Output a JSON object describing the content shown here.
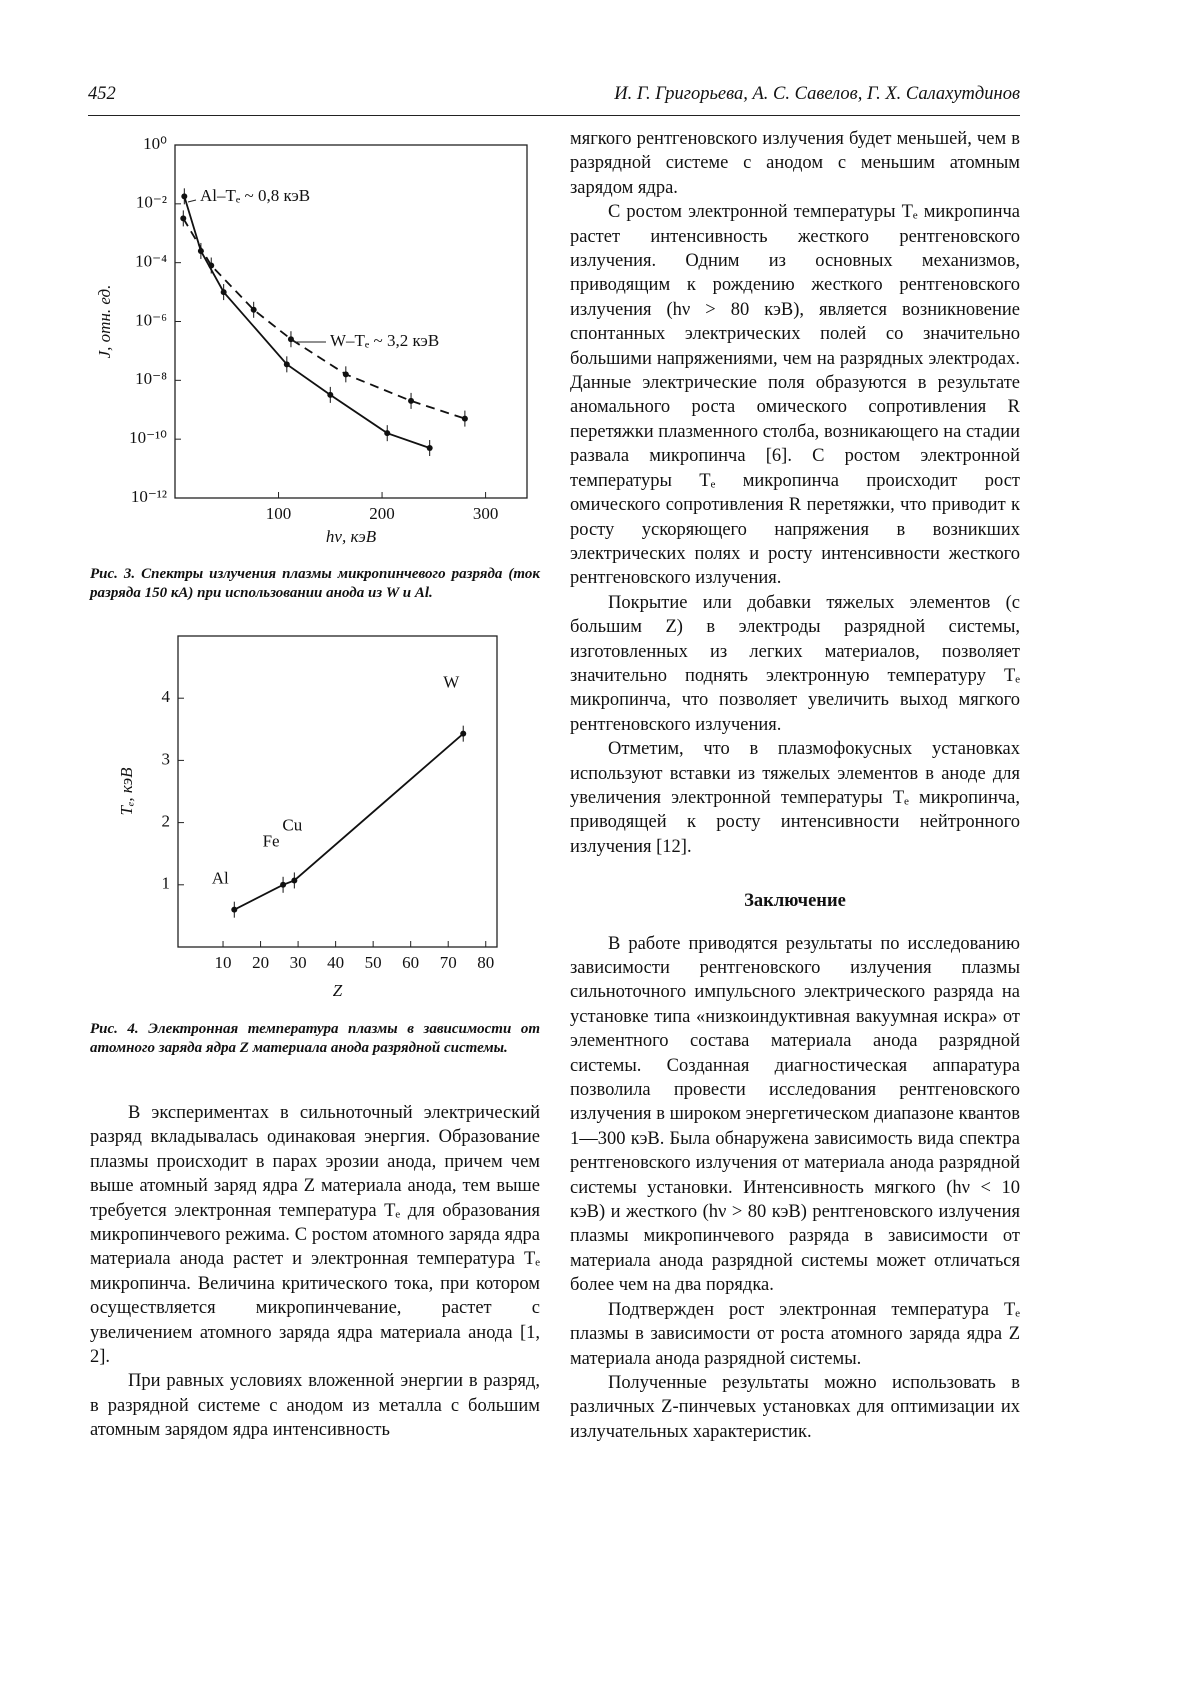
{
  "header": {
    "page_number": "452",
    "authors": "И. Г. Григорьева, А. С. Савелов, Г. Х. Салахутдинов"
  },
  "chart_data": [
    {
      "type": "line",
      "log_scale_y": true,
      "x_label": "hν, кэВ",
      "y_label": "J, отн. ед.",
      "xlim": [
        0,
        340
      ],
      "xticks": [
        100,
        200,
        300
      ],
      "ylim": [
        1e-12,
        1
      ],
      "yticks": [
        {
          "value": 1,
          "label": "10⁰"
        },
        {
          "value": 0.01,
          "label": "10⁻²"
        },
        {
          "value": 0.0001,
          "label": "10⁻⁴"
        },
        {
          "value": 1e-06,
          "label": "10⁻⁶"
        },
        {
          "value": 1e-08,
          "label": "10⁻⁸"
        },
        {
          "value": 1e-10,
          "label": "10⁻¹⁰"
        },
        {
          "value": 1e-12,
          "label": "10⁻¹²"
        }
      ],
      "series": [
        {
          "name": "Al–Tₑ ~ 0,8 кэВ",
          "color": "#111111",
          "dashed": false,
          "x": [
            9,
            25,
            47,
            108,
            150,
            205,
            246
          ],
          "values": [
            0.018,
            0.00025,
            1e-05,
            3.5e-08,
            3.2e-09,
            1.6e-10,
            5e-11
          ]
        },
        {
          "name": "W–Tₑ ~ 3,2 кэВ",
          "color": "#111111",
          "dashed": true,
          "x": [
            8,
            35,
            76,
            112,
            165,
            228,
            280
          ],
          "values": [
            0.0032,
            8e-05,
            2.5e-06,
            2.5e-07,
            1.6e-08,
            2e-09,
            5e-10
          ]
        }
      ],
      "caption": "Рис. 3. Спектры излучения плазмы микропинчевого разряда (ток разряда 150 кА) при использовании анода из W и Al."
    },
    {
      "type": "line",
      "log_scale_y": false,
      "x_label": "Z",
      "y_label": "Tₑ, кэВ",
      "xlim": [
        -2,
        83
      ],
      "xticks": [
        10,
        20,
        30,
        40,
        50,
        60,
        70,
        80
      ],
      "ylim": [
        0,
        5
      ],
      "yticks": [
        1,
        2,
        3,
        4
      ],
      "series": [
        {
          "color": "#111111",
          "dashed": false,
          "x": [
            13,
            26,
            29,
            74
          ],
          "values": [
            0.6,
            1.0,
            1.07,
            3.43
          ],
          "point_labels": [
            "Al",
            "Fe",
            "Cu",
            "W"
          ]
        }
      ],
      "caption": "Рис. 4. Электронная температура плазмы в зависимости от атомного заряда ядра Z материала анода разрядной системы."
    }
  ],
  "left_column": [
    "В экспериментах в сильноточный электрический разряд вкладывалась одинаковая энергия. Образование плазмы происходит в парах эрозии анода, причем чем выше атомный заряд ядра Z материала анода, тем выше требуется электронная температура Tₑ для образования микропинчевого режима. С ростом атомного заряда ядра материала анода растет и электронная температура Tₑ микропинча. Величина критического тока, при котором осуществляется микропинчевание, растет с увеличением атомного заряда ядра материала анода [1, 2].",
    "При равных условиях вложенной энергии в разряд, в разрядной системе с анодом из металла с большим атомным зарядом ядра интенсивность"
  ],
  "right_column": [
    "мягкого рентгеновского излучения будет меньшей, чем в разрядной системе с анодом с меньшим атомным зарядом ядра.",
    "С ростом электронной температуры Tₑ микропинча растет интенсивность жесткого рентгеновского излучения. Одним из основных механизмов, приводящим к рождению жесткого рентгеновского излучения (hν > 80 кэВ), является возникновение спонтанных электрических полей со значительно большими напряжениями, чем на разрядных электродах. Данные электрические поля образуются в результате аномального роста омического сопротивления R перетяжки плазменного столба, возникающего на стадии развала микропинча [6]. С ростом электронной температуры Tₑ микропинча происходит рост омического сопротивления R перетяжки, что приводит к росту ускоряющего напряжения в возникших электрических полях и росту интенсивности жесткого рентгеновского излучения.",
    "Покрытие или добавки тяжелых элементов (с большим Z) в электроды разрядной системы, изготовленных из легких материалов, позволяет значительно поднять электронную температуру Tₑ микропинча, что позволяет увеличить выход мягкого рентгеновского излучения.",
    "Отметим, что в плазмофокусных установках используют вставки из тяжелых элементов в аноде для увеличения электронной температуры Tₑ микропинча, приводящей к росту интенсивности нейтронного излучения [12]."
  ],
  "section_title": "Заключение",
  "conclusion": [
    "В работе приводятся результаты по исследованию зависимости рентгеновского излучения плазмы сильноточного импульсного электрического разряда на установке типа «низкоиндуктивная вакуумная искра» от элементного состава материала анода разрядной системы. Созданная диагностическая аппаратура позволила провести исследования рентгеновского излучения в широком энергетическом диапазоне квантов 1—300 кэВ. Была обнаружена зависимость вида спектра рентгеновского излучения от материала анода разрядной системы установки. Интенсивность мягкого (hν < 10 кэВ) и жесткого (hν > 80 кэВ) рентгеновского излучения плазмы микропинчевого разряда в зависимости от материала анода разрядной системы может отличаться более чем на два порядка.",
    "Подтвержден рост электронная температура Tₑ плазмы в зависимости от роста атомного заряда ядра Z материала анода разрядной системы.",
    "Полученные результаты можно использовать в различных Z-пинчевых установках для оптимизации их излучательных характеристик."
  ]
}
